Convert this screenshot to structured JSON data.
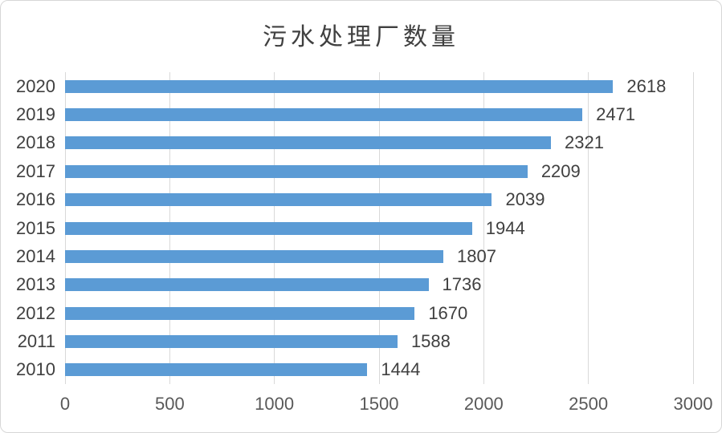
{
  "chart_data": {
    "type": "bar",
    "orientation": "horizontal",
    "title": "污水处理厂数量",
    "categories": [
      "2020",
      "2019",
      "2018",
      "2017",
      "2016",
      "2015",
      "2014",
      "2013",
      "2012",
      "2011",
      "2010"
    ],
    "values": [
      2618,
      2471,
      2321,
      2209,
      2039,
      1944,
      1807,
      1736,
      1670,
      1588,
      1444
    ],
    "xlabel": "",
    "ylabel": "",
    "xlim": [
      0,
      3000
    ],
    "x_ticks": [
      0,
      500,
      1000,
      1500,
      2000,
      2500,
      3000
    ],
    "grid": true,
    "data_labels": true,
    "legend": false,
    "bar_color": "#5B9BD5"
  },
  "colors": {
    "bar": "#5B9BD5",
    "gridline": "#D9D9D9",
    "frame_border": "#D7D7D7",
    "title_text": "#404040",
    "category_text": "#404040",
    "value_text": "#404040",
    "tick_text": "#595959",
    "background": "#FFFFFF"
  }
}
